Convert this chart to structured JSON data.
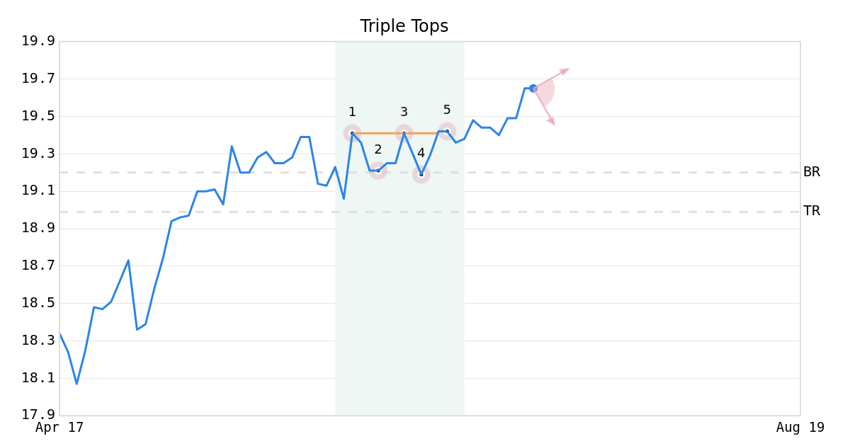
{
  "chart_data": {
    "type": "line",
    "title": "Triple Tops",
    "categories": [
      "Apr 17",
      null,
      null,
      null,
      null,
      null,
      null,
      null,
      null,
      null,
      null,
      null,
      null,
      null,
      null,
      null,
      null,
      null,
      null,
      null,
      null,
      null,
      null,
      null,
      null,
      null,
      null,
      null,
      null,
      null,
      null,
      null,
      null,
      null,
      null,
      null,
      null,
      null,
      null,
      null,
      null,
      null,
      null,
      null,
      null,
      null,
      null,
      null,
      null,
      null,
      null,
      null,
      null,
      null,
      null,
      null,
      null,
      null,
      null,
      null,
      null,
      null,
      null,
      null,
      null,
      null,
      null,
      null,
      null,
      null,
      null,
      null,
      null,
      null,
      null,
      null,
      null,
      null,
      null,
      null,
      null,
      null,
      null,
      null,
      null,
      null,
      "Aug 19"
    ],
    "series": [
      {
        "color": "#2a85e8",
        "marker": "none",
        "values": [
          18.34,
          18.24,
          18.07,
          18.25,
          18.48,
          18.47,
          18.51,
          18.62,
          18.73,
          18.36,
          18.39,
          18.58,
          18.74,
          18.94,
          18.96,
          18.97,
          19.1,
          19.1,
          19.11,
          19.03,
          19.34,
          19.2,
          19.2,
          19.28,
          19.31,
          19.25,
          19.25,
          19.28,
          19.39,
          19.39,
          19.14,
          19.13,
          19.23,
          19.06,
          19.41,
          19.36,
          19.21,
          19.21,
          19.25,
          19.25,
          19.41,
          19.3,
          19.19,
          19.29,
          19.42,
          19.42,
          19.36,
          19.38,
          19.48,
          19.44,
          19.44,
          19.4,
          19.49,
          19.49,
          19.65,
          19.65,
          null,
          null,
          null,
          null,
          null,
          null,
          null,
          null,
          null,
          null,
          null,
          null,
          null,
          null,
          null,
          null,
          null,
          null,
          null,
          null,
          null,
          null,
          null,
          null,
          null,
          null,
          null,
          null,
          null,
          null,
          null
        ]
      },
      {
        "color": "#f5a05a",
        "marker": "none",
        "values": [
          null,
          null,
          null,
          null,
          null,
          null,
          null,
          null,
          null,
          null,
          null,
          null,
          null,
          null,
          null,
          null,
          null,
          null,
          null,
          null,
          null,
          null,
          null,
          null,
          null,
          null,
          null,
          null,
          null,
          null,
          null,
          null,
          null,
          null,
          19.41,
          19.41,
          19.41,
          19.41,
          19.41,
          19.41,
          19.41,
          19.41,
          19.41,
          19.41,
          19.41,
          null,
          null,
          null,
          null,
          null,
          null,
          null,
          null,
          null,
          null,
          null,
          null,
          null,
          null,
          null,
          null,
          null,
          null,
          null,
          null,
          null,
          null,
          null,
          null,
          null,
          null,
          null,
          null,
          null,
          null,
          null,
          null,
          null,
          null,
          null,
          null,
          null,
          null,
          null,
          null,
          null,
          null
        ]
      },
      {
        "type": "scatter",
        "color": "#000000",
        "marker": "circle",
        "values": [
          null,
          null,
          null,
          null,
          null,
          null,
          null,
          null,
          null,
          null,
          null,
          null,
          null,
          null,
          null,
          null,
          null,
          null,
          null,
          null,
          null,
          null,
          null,
          null,
          null,
          null,
          null,
          null,
          null,
          null,
          null,
          null,
          null,
          null,
          19.41,
          null,
          null,
          19.21,
          null,
          null,
          19.41,
          null,
          19.19,
          null,
          null,
          19.42,
          null,
          null,
          null,
          null,
          null,
          null,
          null,
          null,
          null,
          null,
          null,
          null,
          null,
          null,
          null,
          null,
          null,
          null,
          null,
          null,
          null,
          null,
          null,
          null,
          null,
          null,
          null,
          null,
          null,
          null,
          null,
          null,
          null,
          null,
          null,
          null,
          null,
          null,
          null,
          null,
          null
        ]
      },
      {
        "type": "scatter",
        "color": "#2a85e8",
        "marker": "circle",
        "values": [
          null,
          null,
          null,
          null,
          null,
          null,
          null,
          null,
          null,
          null,
          null,
          null,
          null,
          null,
          null,
          null,
          null,
          null,
          null,
          null,
          null,
          null,
          null,
          null,
          null,
          null,
          null,
          null,
          null,
          null,
          null,
          null,
          null,
          null,
          null,
          null,
          null,
          null,
          null,
          null,
          null,
          null,
          null,
          null,
          null,
          null,
          null,
          null,
          null,
          null,
          null,
          null,
          null,
          null,
          null,
          19.65,
          null,
          null,
          null,
          null,
          null,
          null,
          null,
          null,
          null,
          null,
          null,
          null,
          null,
          null,
          null,
          null,
          null,
          null,
          null,
          null,
          null,
          null,
          null,
          null,
          null,
          null,
          null,
          null,
          null,
          null,
          null
        ]
      }
    ],
    "ylim": [
      17.9,
      19.9
    ],
    "yticks": [
      17.9,
      18.1,
      18.3,
      18.5,
      18.7,
      18.9,
      19.1,
      19.3,
      19.5,
      19.7,
      19.9
    ],
    "grid": "y",
    "legend": false,
    "ref_lines": [
      {
        "axis": "y",
        "value": 19.2,
        "label": "BR",
        "color": "#e0e0e0",
        "line_style": "dashed"
      },
      {
        "axis": "y",
        "value": 18.99,
        "label": "TR",
        "color": "#e0e0e0",
        "line_style": "dashed"
      }
    ],
    "annotations": [
      "1",
      "2",
      "3",
      "4",
      "5"
    ]
  }
}
